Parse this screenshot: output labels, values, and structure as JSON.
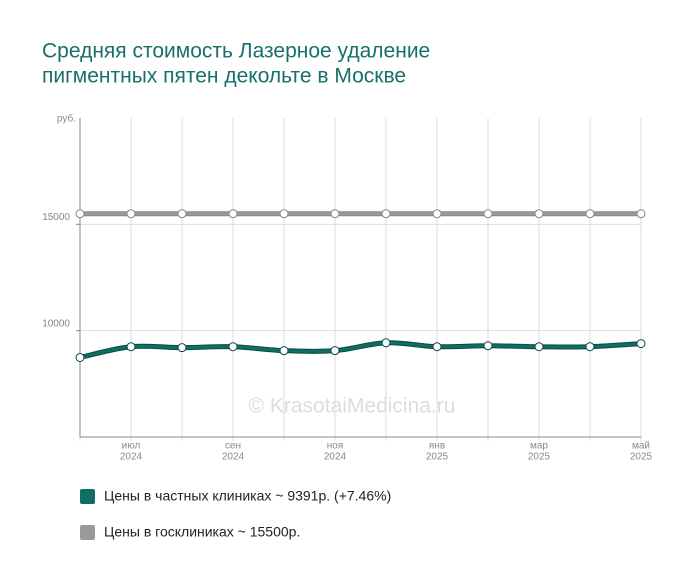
{
  "chart_data": {
    "type": "line",
    "title": [
      "Средняя стоимость Лазерное удаление",
      "пигментных пятен декольте в Москве"
    ],
    "y_unit": "руб.",
    "watermark": "© KrasotaiMedicina.ru",
    "categories": [
      null,
      [
        "июл",
        "2024"
      ],
      null,
      [
        "сен",
        "2024"
      ],
      null,
      [
        "ноя",
        "2024"
      ],
      null,
      [
        "янв",
        "2025"
      ],
      null,
      [
        "мар",
        "2025"
      ],
      null,
      [
        "май",
        "2025"
      ]
    ],
    "series": [
      {
        "name": "Цены в частных клиниках ~ 9391р. (+7.46%)",
        "color": "#0f6e62",
        "values": [
          8739,
          9245,
          9200,
          9245,
          9060,
          9060,
          9430,
          9245,
          9290,
          9245,
          9245,
          9391
        ]
      },
      {
        "name": "Цены в госклиниках ~ 15500р.",
        "color": "#999999",
        "values": [
          15500,
          15500,
          15500,
          15500,
          15500,
          15500,
          15500,
          15500,
          15500,
          15500,
          15500,
          15500
        ]
      }
    ],
    "ylim": [
      5000,
      20000
    ],
    "yticks": [
      10000,
      15000
    ],
    "grid": true
  }
}
